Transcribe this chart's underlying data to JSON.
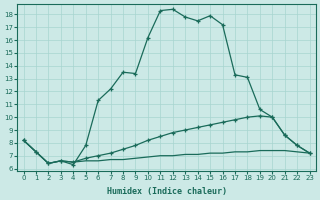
{
  "xlabel": "Humidex (Indice chaleur)",
  "bg_color": "#cce9e6",
  "line_color": "#1a6b5a",
  "grid_color": "#a8d5d0",
  "xlim": [
    -0.5,
    23.5
  ],
  "ylim": [
    5.8,
    18.8
  ],
  "xticks": [
    0,
    1,
    2,
    3,
    4,
    5,
    6,
    7,
    8,
    9,
    10,
    11,
    12,
    13,
    14,
    15,
    16,
    17,
    18,
    19,
    20,
    21,
    22,
    23
  ],
  "yticks": [
    6,
    7,
    8,
    9,
    10,
    11,
    12,
    13,
    14,
    15,
    16,
    17,
    18
  ],
  "curve1_x": [
    0,
    1,
    2,
    3,
    4,
    5,
    6,
    7,
    8,
    9,
    10,
    11,
    12,
    13,
    14,
    15,
    16,
    17,
    18,
    19,
    20,
    21,
    22,
    23
  ],
  "curve1_y": [
    8.2,
    7.3,
    6.4,
    6.6,
    6.3,
    7.8,
    11.3,
    12.2,
    13.5,
    13.4,
    16.2,
    18.3,
    18.4,
    17.8,
    17.5,
    17.9,
    17.2,
    13.3,
    13.1,
    10.6,
    10.0,
    8.6,
    7.8,
    7.2
  ],
  "curve2_x": [
    0,
    1,
    2,
    3,
    4,
    5,
    6,
    7,
    8,
    9,
    10,
    11,
    12,
    13,
    14,
    15,
    16,
    17,
    18,
    19,
    20,
    21,
    22,
    23
  ],
  "curve2_y": [
    8.2,
    7.3,
    6.4,
    6.6,
    6.5,
    6.8,
    7.0,
    7.2,
    7.5,
    7.8,
    8.2,
    8.5,
    8.8,
    9.0,
    9.2,
    9.4,
    9.6,
    9.8,
    10.0,
    10.1,
    10.0,
    8.6,
    7.8,
    7.2
  ],
  "curve3_x": [
    0,
    1,
    2,
    3,
    4,
    5,
    6,
    7,
    8,
    9,
    10,
    11,
    12,
    13,
    14,
    15,
    16,
    17,
    18,
    19,
    20,
    21,
    22,
    23
  ],
  "curve3_y": [
    8.2,
    7.3,
    6.4,
    6.6,
    6.5,
    6.6,
    6.6,
    6.7,
    6.7,
    6.8,
    6.9,
    7.0,
    7.0,
    7.1,
    7.1,
    7.2,
    7.2,
    7.3,
    7.3,
    7.4,
    7.4,
    7.4,
    7.3,
    7.2
  ],
  "xlabel_fontsize": 6,
  "tick_fontsize": 5,
  "linewidth": 0.9,
  "markersize": 3.0
}
